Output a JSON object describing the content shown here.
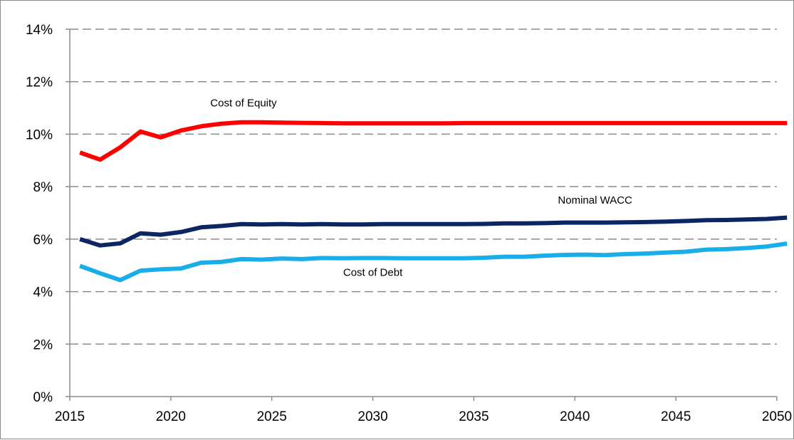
{
  "chart_data": {
    "type": "line",
    "title": "",
    "xlabel": "",
    "ylabel": "",
    "xlim": [
      2015,
      2050
    ],
    "ylim": [
      0,
      14
    ],
    "x_ticks": [
      2015,
      2020,
      2025,
      2030,
      2035,
      2040,
      2045,
      2050
    ],
    "x_tick_labels": [
      "2015",
      "2020",
      "2025",
      "2030",
      "2035",
      "2040",
      "2045",
      "2050"
    ],
    "y_ticks": [
      0,
      2,
      4,
      6,
      8,
      10,
      12,
      14
    ],
    "y_tick_labels": [
      "0%",
      "2%",
      "4%",
      "6%",
      "8%",
      "10%",
      "12%",
      "14%"
    ],
    "grid": "horizontal dashed",
    "legend": "none",
    "x": [
      2015.5,
      2016.5,
      2017.5,
      2018.5,
      2019.5,
      2020.5,
      2021.5,
      2022.5,
      2023.5,
      2024.5,
      2025.5,
      2026.5,
      2027.5,
      2028.5,
      2029.5,
      2030.5,
      2031.5,
      2032.5,
      2033.5,
      2034.5,
      2035.5,
      2036.5,
      2037.5,
      2038.5,
      2039.5,
      2040.5,
      2041.5,
      2042.5,
      2043.5,
      2044.5,
      2045.5,
      2046.5,
      2047.5,
      2048.5,
      2049.5,
      2050.5
    ],
    "series": [
      {
        "color": "#ff0000",
        "values": [
          9.3,
          9.03,
          9.5,
          10.1,
          9.88,
          10.14,
          10.3,
          10.4,
          10.45,
          10.45,
          10.44,
          10.43,
          10.42,
          10.41,
          10.41,
          10.41,
          10.41,
          10.41,
          10.41,
          10.42,
          10.42,
          10.42,
          10.42,
          10.42,
          10.42,
          10.42,
          10.42,
          10.42,
          10.42,
          10.42,
          10.42,
          10.42,
          10.42,
          10.42,
          10.42,
          10.42
        ]
      },
      {
        "color": "#0d2563",
        "values": [
          6.0,
          5.76,
          5.84,
          6.22,
          6.17,
          6.27,
          6.45,
          6.5,
          6.57,
          6.56,
          6.57,
          6.56,
          6.57,
          6.56,
          6.56,
          6.57,
          6.57,
          6.57,
          6.57,
          6.57,
          6.58,
          6.6,
          6.6,
          6.61,
          6.63,
          6.63,
          6.63,
          6.64,
          6.65,
          6.67,
          6.69,
          6.72,
          6.73,
          6.75,
          6.77,
          6.82
        ]
      },
      {
        "color": "#1aaee8",
        "values": [
          4.98,
          4.7,
          4.44,
          4.8,
          4.85,
          4.88,
          5.1,
          5.13,
          5.24,
          5.22,
          5.26,
          5.24,
          5.28,
          5.27,
          5.28,
          5.28,
          5.27,
          5.27,
          5.27,
          5.27,
          5.29,
          5.33,
          5.33,
          5.37,
          5.4,
          5.41,
          5.39,
          5.43,
          5.45,
          5.49,
          5.52,
          5.6,
          5.62,
          5.66,
          5.72,
          5.83
        ]
      }
    ],
    "annotations": [
      {
        "text": "Cost of Equity",
        "x": 2023.6,
        "y": 11.05
      },
      {
        "text": "Nominal WACC",
        "x": 2041.0,
        "y": 7.35
      },
      {
        "text": "Cost of Debt",
        "x": 2030.0,
        "y": 4.6
      }
    ]
  }
}
